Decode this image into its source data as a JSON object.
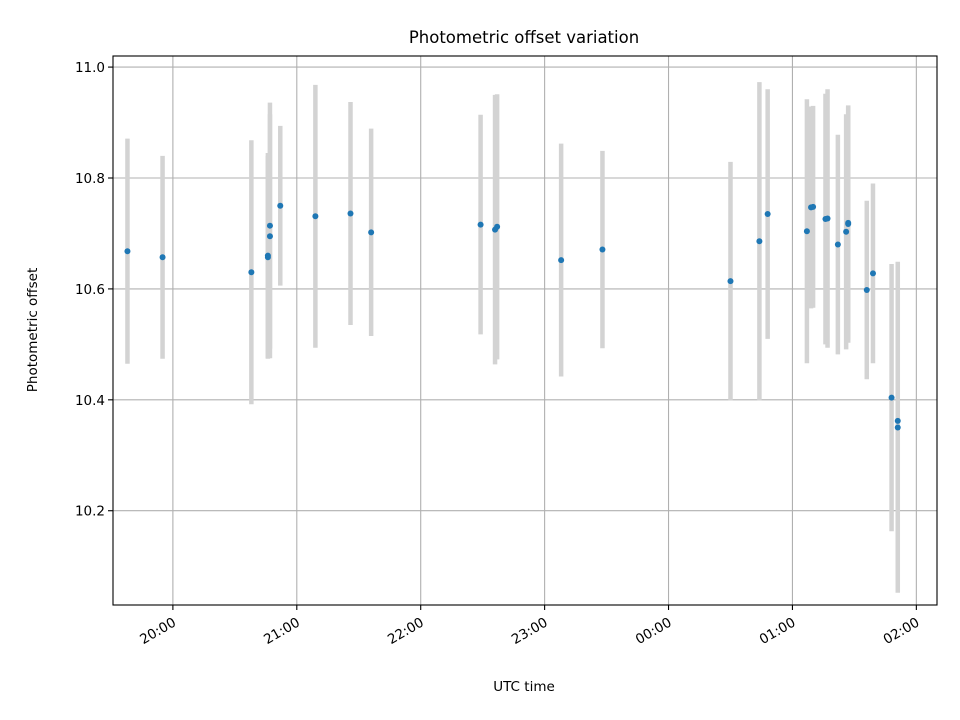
{
  "chart_data": {
    "type": "scatter",
    "title": "Photometric offset variation",
    "xlabel": "UTC time",
    "ylabel": "Photometric offset",
    "x_axis_type": "time",
    "x_range": [
      "19:31",
      "02:10"
    ],
    "ylim": [
      10.03,
      11.02
    ],
    "x_ticks": [
      "20:00",
      "21:00",
      "22:00",
      "23:00",
      "00:00",
      "01:00",
      "02:00"
    ],
    "y_ticks": [
      10.2,
      10.4,
      10.6,
      10.8,
      11.0
    ],
    "y_tick_labels": [
      "10.2",
      "10.4",
      "10.6",
      "10.8",
      "11.0"
    ],
    "grid": true,
    "x_tick_rotation": "30deg",
    "colors": {
      "points": "#1f77b4",
      "errorbars": "#d3d3d3",
      "grid": "#b0b0b0"
    },
    "points": [
      {
        "t": "19:38",
        "y": 10.668,
        "err": 0.203
      },
      {
        "t": "19:55",
        "y": 10.657,
        "err": 0.183
      },
      {
        "t": "20:38",
        "y": 10.63,
        "err": 0.238
      },
      {
        "t": "20:46",
        "y": 10.66,
        "err": 0.185
      },
      {
        "t": "20:46",
        "y": 10.657,
        "err": 0.183
      },
      {
        "t": "20:47",
        "y": 10.714,
        "err": 0.222
      },
      {
        "t": "20:47",
        "y": 10.695,
        "err": 0.22
      },
      {
        "t": "20:52",
        "y": 10.75,
        "err": 0.144
      },
      {
        "t": "21:09",
        "y": 10.731,
        "err": 0.237
      },
      {
        "t": "21:26",
        "y": 10.736,
        "err": 0.201
      },
      {
        "t": "21:36",
        "y": 10.702,
        "err": 0.187
      },
      {
        "t": "22:29",
        "y": 10.716,
        "err": 0.198
      },
      {
        "t": "22:36",
        "y": 10.707,
        "err": 0.243
      },
      {
        "t": "22:37",
        "y": 10.712,
        "err": 0.239
      },
      {
        "t": "23:08",
        "y": 10.652,
        "err": 0.21
      },
      {
        "t": "23:28",
        "y": 10.671,
        "err": 0.178
      },
      {
        "t": "00:30",
        "y": 10.614,
        "err": 0.215
      },
      {
        "t": "00:44",
        "y": 10.686,
        "err": 0.287
      },
      {
        "t": "00:48",
        "y": 10.735,
        "err": 0.225
      },
      {
        "t": "01:07",
        "y": 10.704,
        "err": 0.238
      },
      {
        "t": "01:09",
        "y": 10.747,
        "err": 0.182
      },
      {
        "t": "01:10",
        "y": 10.748,
        "err": 0.182
      },
      {
        "t": "01:16",
        "y": 10.726,
        "err": 0.226
      },
      {
        "t": "01:17",
        "y": 10.727,
        "err": 0.233
      },
      {
        "t": "01:22",
        "y": 10.68,
        "err": 0.198
      },
      {
        "t": "01:26",
        "y": 10.703,
        "err": 0.212
      },
      {
        "t": "01:27",
        "y": 10.719,
        "err": 0.21
      },
      {
        "t": "01:27",
        "y": 10.717,
        "err": 0.214
      },
      {
        "t": "01:36",
        "y": 10.598,
        "err": 0.161
      },
      {
        "t": "01:39",
        "y": 10.628,
        "err": 0.162
      },
      {
        "t": "01:48",
        "y": 10.404,
        "err": 0.241
      },
      {
        "t": "01:51",
        "y": 10.362,
        "err": 0.287
      },
      {
        "t": "01:51",
        "y": 10.35,
        "err": 0.298
      }
    ]
  }
}
